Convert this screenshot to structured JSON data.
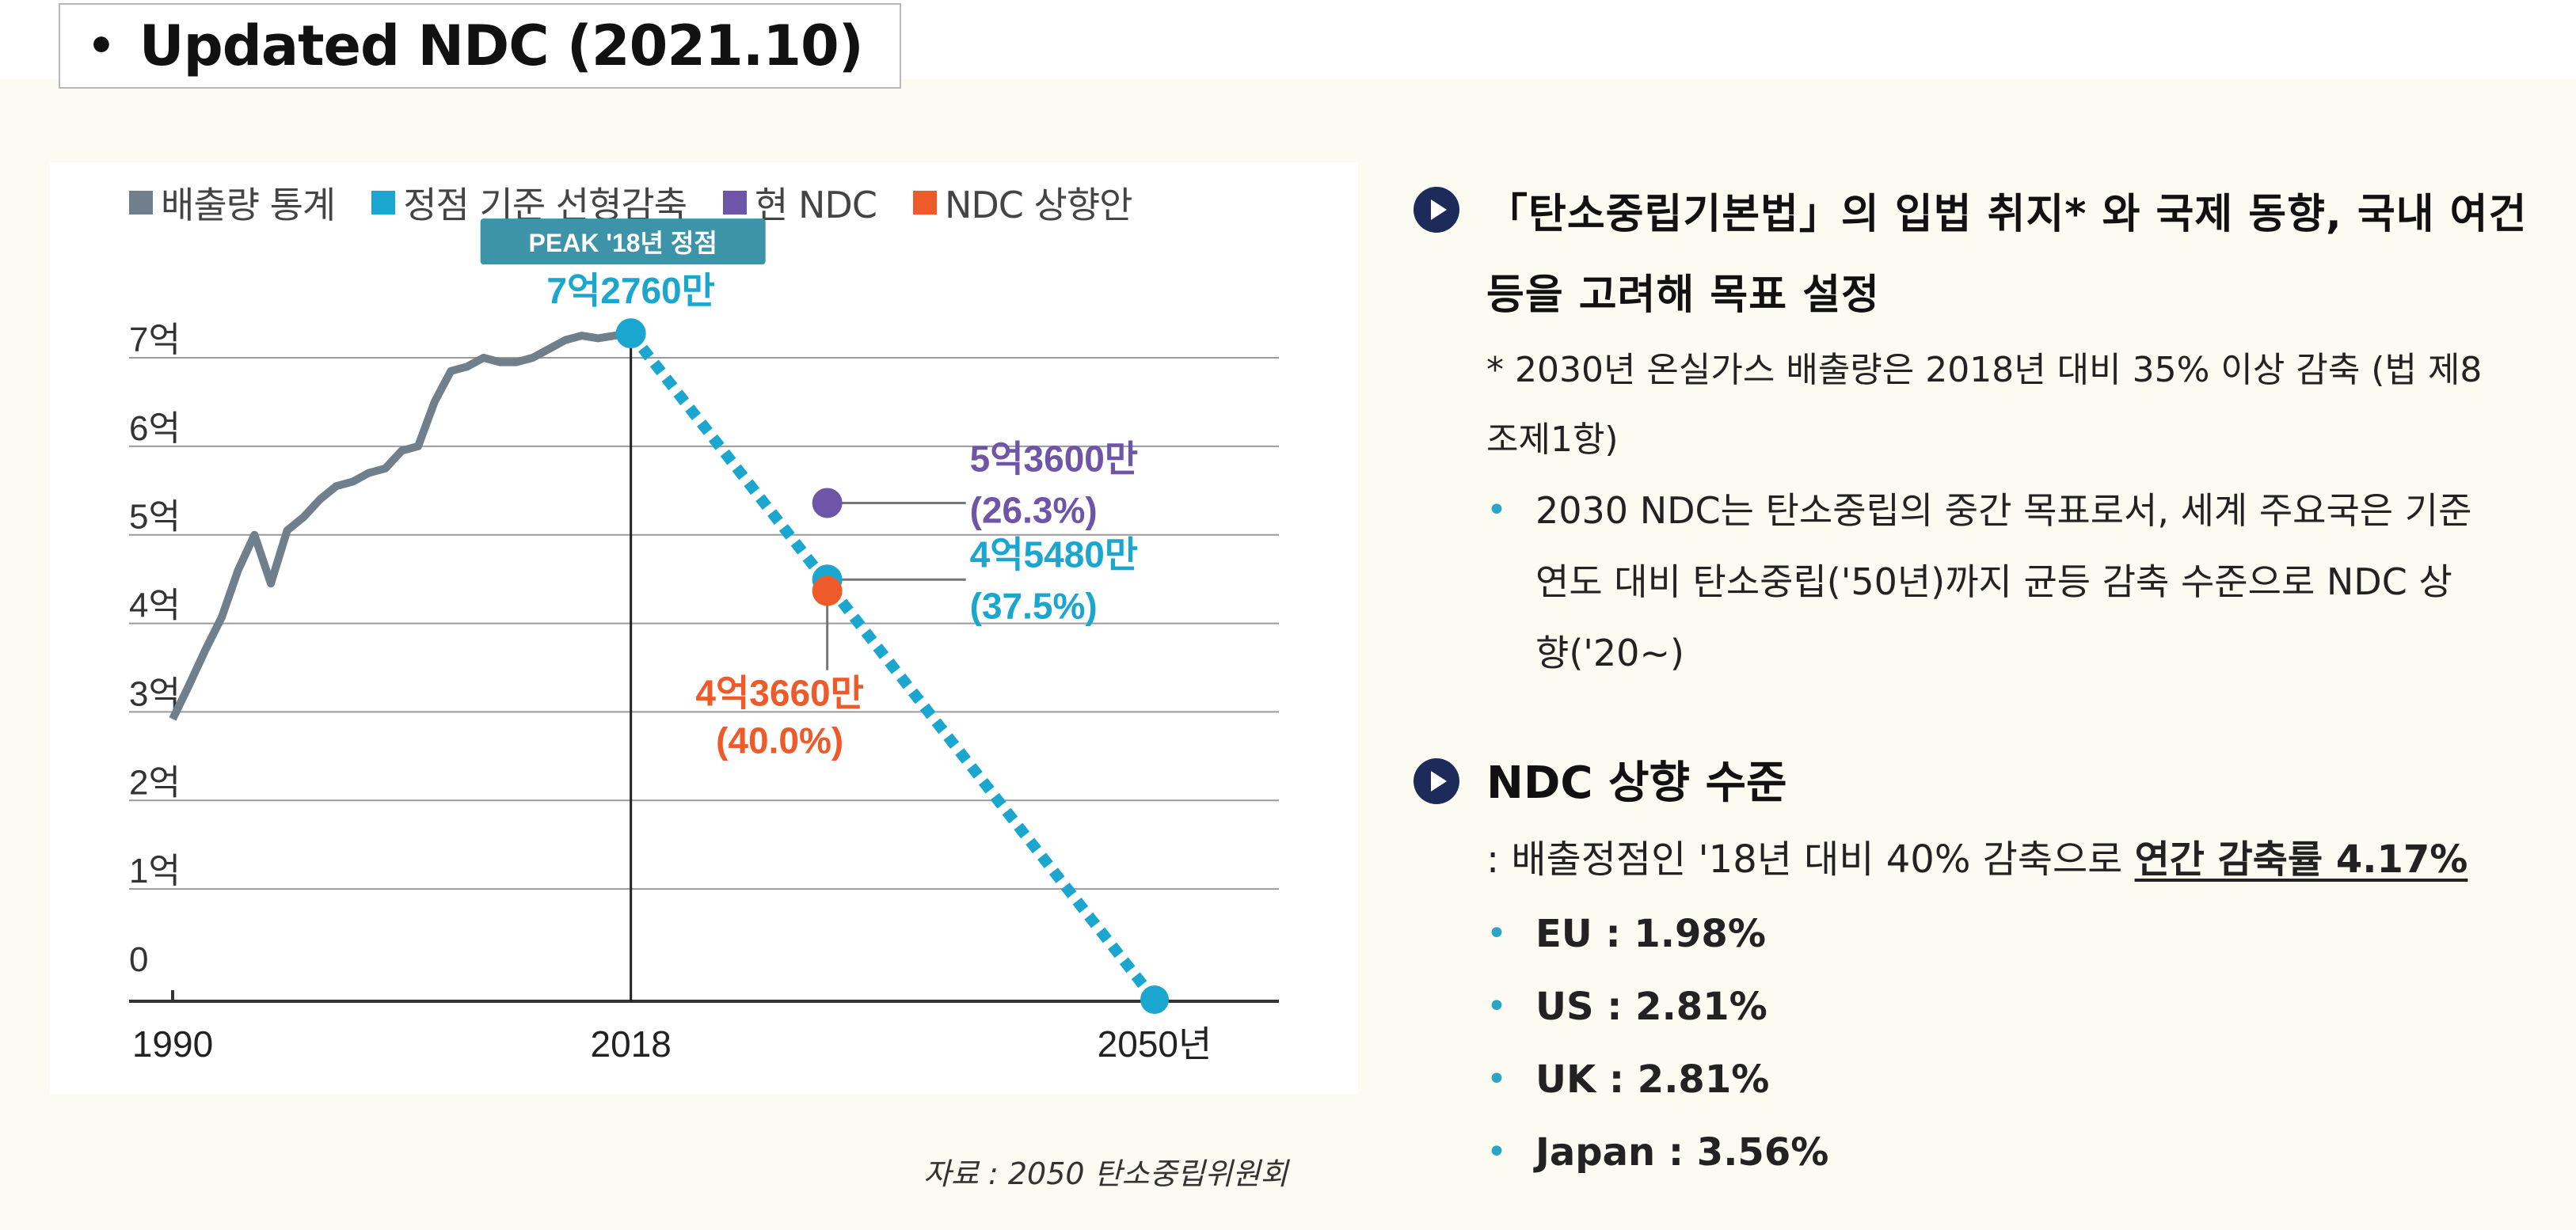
{
  "title": {
    "bullet": "•",
    "text": "Updated NDC (2021.10)"
  },
  "chart_data": {
    "type": "line",
    "legend": [
      {
        "label": "배출량 통계",
        "color": "#6f7f8c"
      },
      {
        "label": "정점 기준 선형감축",
        "color": "#1aa6cf"
      },
      {
        "label": "현 NDC",
        "color": "#6e55a8"
      },
      {
        "label": "NDC 상향안",
        "color": "#ef5a2a"
      }
    ],
    "y_ticks": [
      {
        "value": 0,
        "label": "0"
      },
      {
        "value": 1,
        "label": "1억"
      },
      {
        "value": 2,
        "label": "2억"
      },
      {
        "value": 3,
        "label": "3억"
      },
      {
        "value": 4,
        "label": "4억"
      },
      {
        "value": 5,
        "label": "5억"
      },
      {
        "value": 6,
        "label": "6억"
      },
      {
        "value": 7,
        "label": "7억"
      }
    ],
    "ylim": [
      0,
      7.9
    ],
    "xlim": [
      1990,
      2050
    ],
    "x_ticks": [
      {
        "value": 1990,
        "label": "1990"
      },
      {
        "value": 2018,
        "label": "2018"
      },
      {
        "value": 2050,
        "label": "2050년"
      }
    ],
    "series": [
      {
        "name": "배출량 통계",
        "x": [
          1990,
          1991,
          1992,
          1993,
          1994,
          1995,
          1996,
          1997,
          1998,
          1999,
          2000,
          2001,
          2002,
          2003,
          2004,
          2005,
          2006,
          2007,
          2008,
          2009,
          2010,
          2011,
          2012,
          2013,
          2014,
          2015,
          2016,
          2017,
          2018
        ],
        "values": [
          2.92,
          3.3,
          3.7,
          4.07,
          4.6,
          5.0,
          4.45,
          5.05,
          5.2,
          5.4,
          5.55,
          5.6,
          5.7,
          5.75,
          5.95,
          6.0,
          6.5,
          6.85,
          6.9,
          7.0,
          6.95,
          6.95,
          7.0,
          7.1,
          7.2,
          7.25,
          7.22,
          7.25,
          7.276
        ]
      },
      {
        "name": "정점 기준 선형감축",
        "x": [
          2018,
          2050
        ],
        "values": [
          7.276,
          0
        ]
      }
    ],
    "points": [
      {
        "series": "배출량 통계",
        "x": 2018,
        "value": 7.276,
        "label": "7억2760만"
      },
      {
        "series": "현 NDC",
        "x": 2030,
        "value": 5.36,
        "label": "5억3600만",
        "sublabel": "(26.3%)"
      },
      {
        "series": "정점 기준 선형감축",
        "x": 2030,
        "value": 4.548,
        "label": "4억5480만",
        "sublabel": "(37.5%)"
      },
      {
        "series": "NDC 상향안",
        "x": 2030,
        "value": 4.366,
        "label": "4억3660만",
        "sublabel": "(40.0%)"
      }
    ],
    "peak_badge": "PEAK '18년 정점"
  },
  "source": "자료 : 2050 탄소중립위원회",
  "section1": {
    "title": "「탄소중립기본법」의 입법 취지* 와 국제 동향, 국내 여건 등을 고려해 목표 설정",
    "note": "* 2030년 온실가스 배출량은 2018년 대비 35% 이상 감축 (법 제8조제1항)",
    "bullet": "2030 NDC는 탄소중립의 중간 목표로서, 세계 주요국은 기준연도 대비 탄소중립('50년)까지 균등 감축 수준으로 NDC 상향('20~)"
  },
  "section2": {
    "title": "NDC 상향 수준",
    "summary_prefix": ": 배출정점인 '18년 대비 40% 감축으로 ",
    "summary_highlight": "연간 감축률 4.17%",
    "stats": [
      "EU : 1.98%",
      "US : 2.81%",
      "UK : 2.81%",
      "Japan : 3.56%"
    ]
  }
}
